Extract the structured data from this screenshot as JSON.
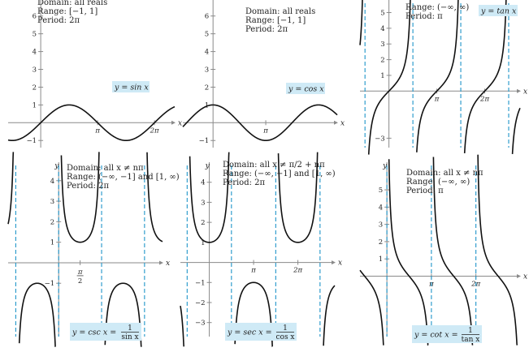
{
  "chart_data": [
    {
      "type": "line",
      "function": "sin",
      "info": [
        "Domain: all reals",
        "Range: [−1, 1]",
        "Period: 2π"
      ],
      "formula": {
        "lhs": "y = sin x"
      },
      "y_ticks": [
        {
          "v": 6,
          "label": "6"
        },
        {
          "v": 5,
          "label": "5"
        },
        {
          "v": 4,
          "label": "4"
        },
        {
          "v": 3,
          "label": "3"
        },
        {
          "v": 2,
          "label": "2"
        },
        {
          "v": 1,
          "label": "1"
        },
        {
          "v": -1,
          "label": "−1"
        }
      ],
      "x_ticks": [
        {
          "v": 3.14159,
          "label": "π"
        },
        {
          "v": 6.28318,
          "label": "2π"
        }
      ],
      "x_axis_label": "x",
      "y_axis_label": "",
      "xlim": [
        -1.8,
        7.4
      ],
      "ylim": [
        -1.4,
        6.9
      ],
      "asymptotes": []
    },
    {
      "type": "line",
      "function": "cos",
      "info": [
        "Domain: all reals",
        "Range: [−1, 1]",
        "Period: 2π"
      ],
      "formula": {
        "lhs": "y = cos x"
      },
      "y_ticks": [
        {
          "v": 6,
          "label": "6"
        },
        {
          "v": 5,
          "label": "5"
        },
        {
          "v": 4,
          "label": "4"
        },
        {
          "v": 3,
          "label": "3"
        },
        {
          "v": 2,
          "label": "2"
        },
        {
          "v": 1,
          "label": "1"
        },
        {
          "v": -1,
          "label": "−1"
        }
      ],
      "x_ticks": [
        {
          "v": 3.14159,
          "label": "π"
        }
      ],
      "x_axis_label": "x",
      "y_axis_label": "",
      "xlim": [
        -1.8,
        7.4
      ],
      "ylim": [
        -1.4,
        6.9
      ],
      "asymptotes": []
    },
    {
      "type": "line",
      "function": "tan",
      "info": [
        "Range: (−∞, ∞)",
        "Period: π"
      ],
      "formula": {
        "lhs": "y = tan x"
      },
      "y_ticks": [
        {
          "v": 5,
          "label": "5"
        },
        {
          "v": 4,
          "label": "4"
        },
        {
          "v": 3,
          "label": "3"
        },
        {
          "v": 2,
          "label": "2"
        },
        {
          "v": 1,
          "label": "1"
        },
        {
          "v": -3,
          "label": "−3"
        }
      ],
      "x_ticks": [
        {
          "v": 3.14159,
          "label": "π"
        },
        {
          "v": 6.28318,
          "label": "2π"
        }
      ],
      "x_axis_label": "x",
      "y_axis_label": "",
      "xlim": [
        -1.9,
        8.6
      ],
      "ylim": [
        -3.6,
        5.8
      ],
      "asymptotes": [
        -1.5708,
        1.5708,
        4.7124,
        7.854
      ]
    },
    {
      "type": "line",
      "function": "csc",
      "info": [
        "Domain: all x ≠ nπ",
        "Range: (−∞, −1] and [1, ∞)",
        "Period: 2π"
      ],
      "formula": {
        "lhs": "y = csc x =",
        "num": "1",
        "den": "sin x"
      },
      "y_ticks": [
        {
          "v": 4,
          "label": "4"
        },
        {
          "v": 3,
          "label": "3"
        },
        {
          "v": 2,
          "label": "2"
        },
        {
          "v": 1,
          "label": "1"
        },
        {
          "v": -1,
          "label": "−1"
        }
      ],
      "x_ticks": [
        {
          "v": 1.5708,
          "label": "π/2"
        }
      ],
      "x_axis_label": "x",
      "y_axis_label": "y",
      "xlim": [
        -3.7,
        7.6
      ],
      "ylim": [
        -3.6,
        4.9
      ],
      "asymptotes": [
        -3.14159,
        0,
        3.14159,
        6.28318
      ]
    },
    {
      "type": "line",
      "function": "sec",
      "info": [
        "Domain: all x ≠ π/2 + nπ",
        "Range: (−∞, −1] and [1, ∞)",
        "Period: 2π"
      ],
      "formula": {
        "lhs": "y = sec x =",
        "num": "1",
        "den": "cos x"
      },
      "y_ticks": [
        {
          "v": 4,
          "label": "4"
        },
        {
          "v": 3,
          "label": "3"
        },
        {
          "v": 2,
          "label": "2"
        },
        {
          "v": 1,
          "label": "1"
        },
        {
          "v": -1,
          "label": "−1"
        },
        {
          "v": -2,
          "label": "−2"
        },
        {
          "v": -3,
          "label": "−3"
        }
      ],
      "x_ticks": [
        {
          "v": 3.14159,
          "label": "π"
        },
        {
          "v": 6.28318,
          "label": "2π"
        }
      ],
      "x_axis_label": "x",
      "y_axis_label": "y",
      "xlim": [
        -2.05,
        8.9
      ],
      "ylim": [
        -3.7,
        5.0
      ],
      "asymptotes": [
        -1.5708,
        1.5708,
        4.7124,
        7.854
      ]
    },
    {
      "type": "line",
      "function": "cot",
      "info": [
        "Domain: all x ≠ nπ",
        "Range: (−∞, ∞)",
        "Period: π"
      ],
      "formula": {
        "lhs": "y = cot x =",
        "num": "1",
        "den": "tan x"
      },
      "y_ticks": [
        {
          "v": 5,
          "label": "5"
        },
        {
          "v": 4,
          "label": "4"
        },
        {
          "v": 3,
          "label": "3"
        },
        {
          "v": 2,
          "label": "2"
        },
        {
          "v": 1,
          "label": "1"
        }
      ],
      "x_ticks": [
        {
          "v": 3.14159,
          "label": "π"
        },
        {
          "v": 6.28318,
          "label": "2π"
        }
      ],
      "x_axis_label": "x",
      "y_axis_label": "y",
      "xlim": [
        -1.9,
        9.4
      ],
      "ylim": [
        -3.5,
        6.6
      ],
      "asymptotes": [
        0,
        3.14159,
        6.28318
      ]
    }
  ]
}
